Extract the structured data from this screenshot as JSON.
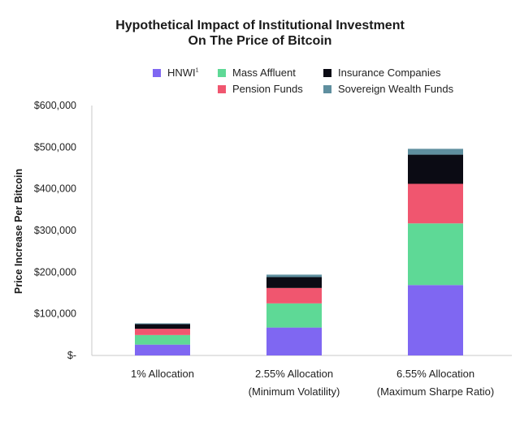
{
  "chart_data": {
    "type": "bar",
    "stacked": true,
    "title_line1": "Hypothetical Impact of Institutional Investment",
    "title_line2": "On The Price of Bitcoin",
    "ylabel": "Price Increase Per Bitcoin",
    "ylim": [
      0,
      600000
    ],
    "y_ticks": [
      0,
      100000,
      200000,
      300000,
      400000,
      500000,
      600000
    ],
    "y_tick_labels": [
      "$-",
      "$100,000",
      "$200,000",
      "$300,000",
      "$400,000",
      "$500,000",
      "$600,000"
    ],
    "categories": [
      {
        "line1": "1% Allocation",
        "line2": ""
      },
      {
        "line1": "2.55% Allocation",
        "line2": "(Minimum Volatility)"
      },
      {
        "line1": "6.55% Allocation",
        "line2": "(Maximum Sharpe Ratio)"
      }
    ],
    "series": [
      {
        "name": "HNWI",
        "sup": "1",
        "color": "#7f67f2",
        "values": [
          26000,
          67000,
          169000
        ]
      },
      {
        "name": "Mass Affluent",
        "color": "#5ed996",
        "values": [
          23000,
          58000,
          148000
        ]
      },
      {
        "name": "Pension Funds",
        "color": "#f0566f",
        "values": [
          15000,
          37000,
          95000
        ]
      },
      {
        "name": "Insurance Companies",
        "color": "#0b0b14",
        "values": [
          11000,
          26000,
          70000
        ]
      },
      {
        "name": "Sovereign Wealth Funds",
        "color": "#5f8f9f",
        "values": [
          2000,
          6000,
          14000
        ]
      }
    ],
    "legend_position": "top",
    "grid": false
  }
}
